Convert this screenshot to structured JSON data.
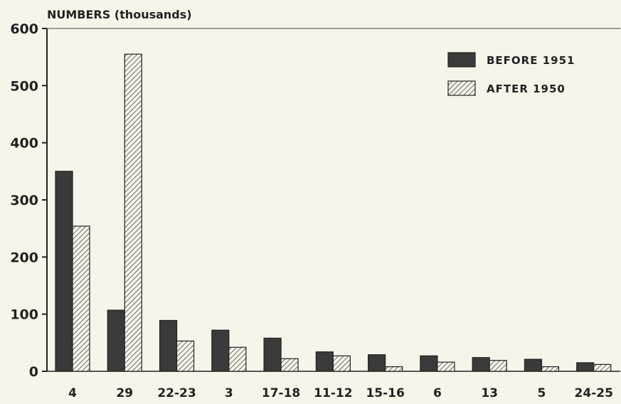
{
  "chart_data": {
    "type": "bar",
    "title": "",
    "ylabel": "NUMBERS (thousands)",
    "xlabel": "",
    "ylim": [
      0,
      600
    ],
    "yticks": [
      0,
      100,
      200,
      300,
      400,
      500,
      600
    ],
    "categories": [
      "4",
      "29",
      "22-23",
      "3",
      "17-18",
      "11-12",
      "15-16",
      "6",
      "13",
      "5",
      "24-25"
    ],
    "series": [
      {
        "name": "BEFORE 1951",
        "fill": "solid",
        "color": "#3a3a3a",
        "values": [
          350,
          107,
          89,
          72,
          58,
          34,
          29,
          27,
          24,
          21,
          15
        ]
      },
      {
        "name": "AFTER 1950",
        "fill": "hatched",
        "color": "#555555",
        "values": [
          254,
          555,
          53,
          42,
          22,
          27,
          8,
          16,
          19,
          8,
          12
        ]
      }
    ],
    "grid": false,
    "legend_position": "top-right"
  }
}
